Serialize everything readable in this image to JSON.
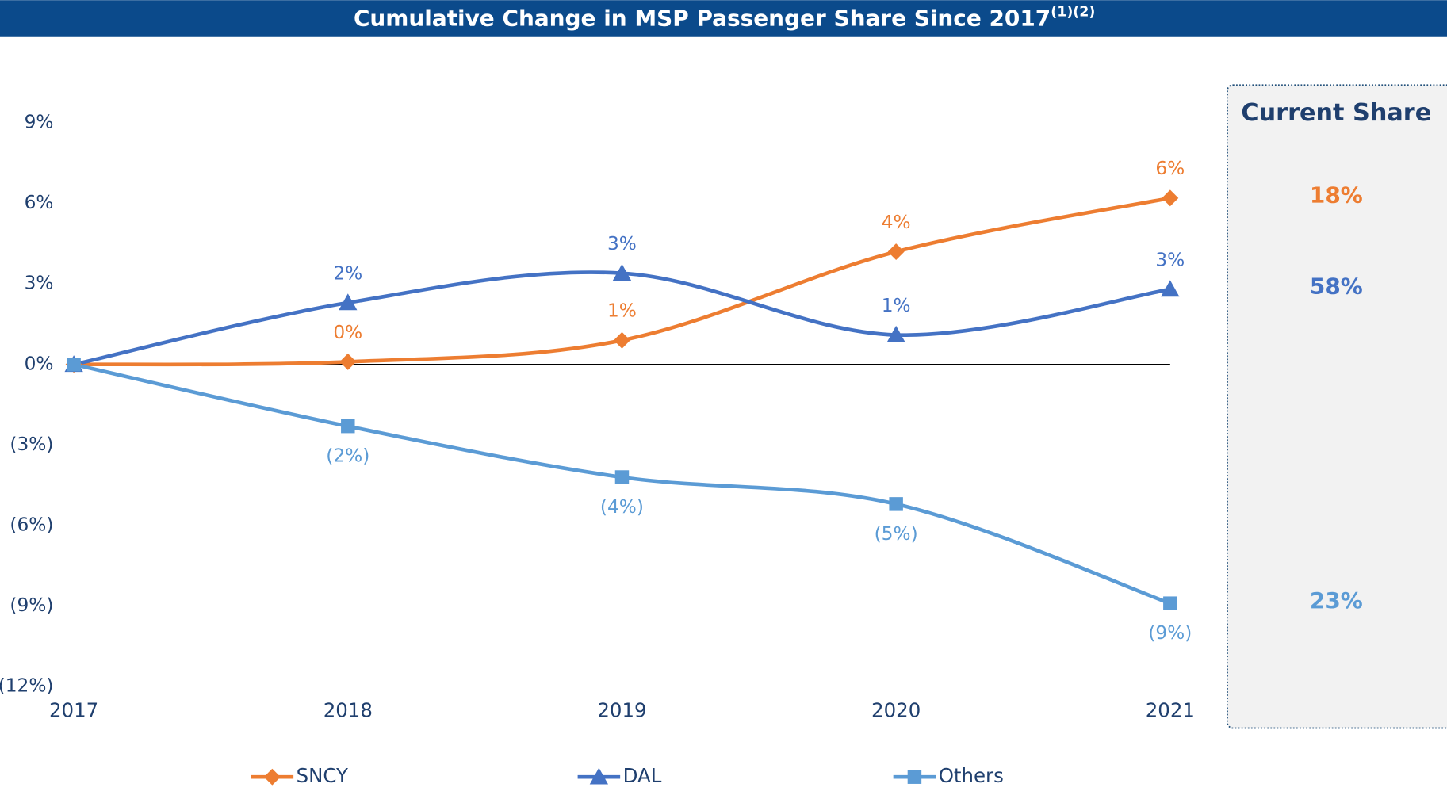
{
  "chart_data": {
    "type": "line",
    "title": "Cumulative Change in MSP Passenger Share Since 2017",
    "title_superscript": "(1)(2)",
    "categories": [
      "2017",
      "2018",
      "2019",
      "2020",
      "2021"
    ],
    "series": [
      {
        "name": "SNCY",
        "color": "#ed7d31",
        "marker": "diamond",
        "label_position": "above",
        "values": [
          0,
          0.1,
          0.9,
          4.2,
          6.2
        ],
        "value_labels": [
          null,
          "0%",
          "1%",
          "4%",
          "6%"
        ]
      },
      {
        "name": "DAL",
        "color": "#4472c4",
        "marker": "triangle",
        "label_position": "above",
        "values": [
          0,
          2.3,
          3.4,
          1.1,
          2.8
        ],
        "value_labels": [
          null,
          "2%",
          "3%",
          "1%",
          "3%"
        ]
      },
      {
        "name": "Others",
        "color": "#5b9bd5",
        "marker": "square",
        "label_position": "below",
        "values": [
          0,
          -2.3,
          -4.2,
          -5.2,
          -8.9
        ],
        "value_labels": [
          null,
          "(2%)",
          "(4%)",
          "(5%)",
          "(9%)"
        ]
      }
    ],
    "ylim": [
      -12,
      9
    ],
    "yticks": [
      {
        "value": -12,
        "label": "(12%)"
      },
      {
        "value": -9,
        "label": "(9%)"
      },
      {
        "value": -6,
        "label": "(6%)"
      },
      {
        "value": -3,
        "label": "(3%)"
      },
      {
        "value": 0,
        "label": "0%"
      },
      {
        "value": 3,
        "label": "3%"
      },
      {
        "value": 6,
        "label": "6%"
      },
      {
        "value": 9,
        "label": "9%"
      }
    ],
    "grid": false,
    "zero_line": true,
    "legend": "bottom",
    "current_share": {
      "title": "Current Share",
      "values": [
        "18%",
        "58%",
        "23%"
      ]
    }
  }
}
